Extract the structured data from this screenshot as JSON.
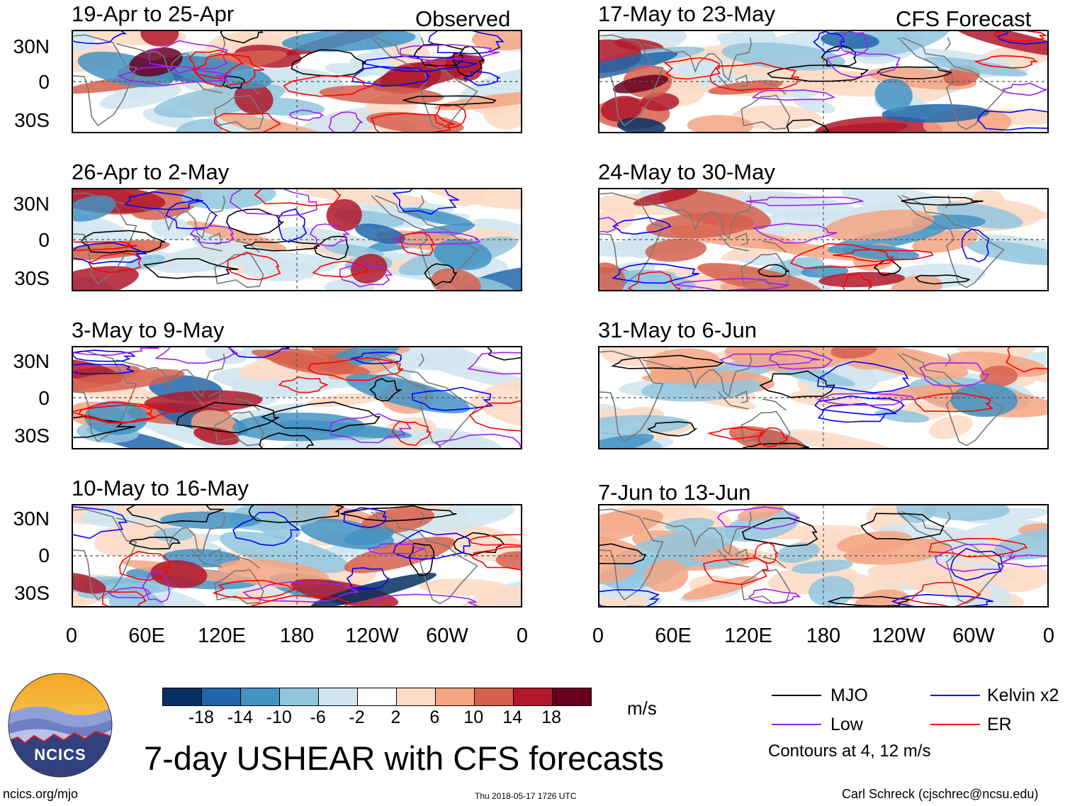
{
  "title": "7-day USHEAR with CFS forecasts",
  "observed_label": "Observed",
  "forecast_label": "CFS Forecast",
  "logo": {
    "text": "NCICS"
  },
  "footer": {
    "url": "ncics.org/mjo",
    "timestamp": "Thu 2018-05-17 1726 UTC",
    "author": "Carl Schreck (cjschrec@ncsu.edu)"
  },
  "colorbar": {
    "units": "m/s",
    "labels": [
      "-18",
      "-14",
      "-10",
      "-6",
      "-2",
      "2",
      "6",
      "10",
      "14",
      "18"
    ],
    "colors": [
      "#053061",
      "#2166ac",
      "#4393c3",
      "#92c5de",
      "#d1e5f0",
      "#ffffff",
      "#fddbc7",
      "#f4a582",
      "#d6604d",
      "#b2182b",
      "#67001f"
    ]
  },
  "legend": {
    "items": [
      {
        "name": "MJO",
        "color": "#000000"
      },
      {
        "name": "Kelvin x2",
        "color": "#0000ff"
      },
      {
        "name": "Low",
        "color": "#a020f0"
      },
      {
        "name": "ER",
        "color": "#ff0000"
      }
    ],
    "note": "Contours at 4, 12 m/s"
  },
  "chart_data": {
    "type": "heatmap",
    "variable": "USHEAR",
    "units": "m/s",
    "contour_levels": [
      4,
      12
    ],
    "y_ticks": [
      "30N",
      "0",
      "30S"
    ],
    "x_ticks": [
      "0",
      "60E",
      "120E",
      "180",
      "120W",
      "60W",
      "0"
    ],
    "panels": [
      {
        "period": "19-Apr to 25-Apr",
        "type": "Observed",
        "seed": 11
      },
      {
        "period": "26-Apr to 2-May",
        "type": "Observed",
        "seed": 23
      },
      {
        "period": "3-May to 9-May",
        "type": "Observed",
        "seed": 37
      },
      {
        "period": "10-May to 16-May",
        "type": "Observed",
        "seed": 41
      },
      {
        "period": "17-May to 23-May",
        "type": "CFS Forecast",
        "seed": 53
      },
      {
        "period": "24-May to 30-May",
        "type": "CFS Forecast",
        "seed": 67
      },
      {
        "period": "31-May to 6-Jun",
        "type": "CFS Forecast",
        "seed": 79
      },
      {
        "period": "7-Jun to 13-Jun",
        "type": "CFS Forecast",
        "seed": 83
      }
    ]
  }
}
